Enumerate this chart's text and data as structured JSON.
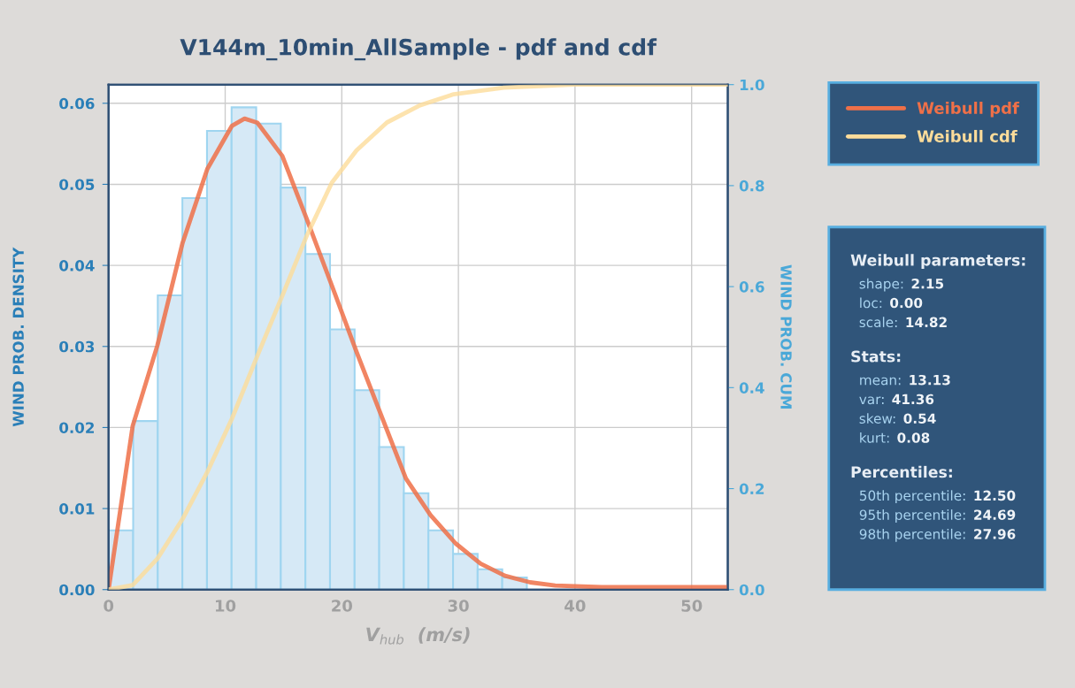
{
  "chart_data": {
    "type": "histogram",
    "title": "V144m_10min_AllSample - pdf and cdf",
    "xlabel": "V$_{hub}$  (m/s)",
    "ylabel": "WIND PROB. DENSITY",
    "y2label": "WIND PROB. CUM",
    "bins": [
      0,
      2.11,
      4.22,
      6.33,
      8.44,
      10.55,
      12.66,
      14.77,
      16.88,
      18.99,
      21.1,
      23.21,
      25.32,
      27.43,
      29.54,
      31.65,
      33.76,
      35.87,
      37.98,
      40.09,
      42.2
    ],
    "values": [
      0.0073,
      0.0208,
      0.0363,
      0.0483,
      0.0566,
      0.0595,
      0.0575,
      0.0496,
      0.0414,
      0.0321,
      0.0246,
      0.0176,
      0.0119,
      0.0073,
      0.0044,
      0.0025,
      0.0015,
      null,
      null,
      null
    ],
    "color": "#d6e9f6",
    "series": [
      {
        "name": "Weibull pdf",
        "type": "line",
        "color": "#ef7048",
        "x": [
          0,
          2.07,
          4.18,
          6.35,
          8.47,
          10.57,
          11.66,
          12.76,
          14.9,
          17.0,
          19.15,
          21.27,
          23.38,
          25.5,
          27.6,
          29.76,
          31.9,
          34.0,
          36.15,
          38.3,
          42.3,
          53.1
        ],
        "values": [
          0,
          0.0202,
          0.0301,
          0.0428,
          0.0519,
          0.0572,
          0.0581,
          0.0576,
          0.0535,
          0.0457,
          0.0375,
          0.0293,
          0.0215,
          0.0137,
          0.0092,
          0.0057,
          0.0032,
          0.0017,
          0.0009,
          0.0005,
          0.0003,
          0.0003
        ]
      },
      {
        "name": "Weibull cdf",
        "type": "line",
        "axis": "y2",
        "color": "#fddc9a",
        "x": [
          0,
          2.07,
          4.18,
          6.35,
          8.47,
          10.57,
          12.76,
          14.9,
          17.0,
          19.15,
          21.27,
          23.87,
          26.7,
          29.6,
          33.9,
          40,
          53.1
        ],
        "values": [
          0,
          0.009,
          0.061,
          0.14,
          0.233,
          0.338,
          0.463,
          0.582,
          0.701,
          0.806,
          0.87,
          0.925,
          0.959,
          0.981,
          0.994,
          1.0,
          1.0
        ]
      }
    ],
    "xlim": [
      0,
      53.1
    ],
    "xticks": [
      0,
      10,
      20,
      30,
      40,
      50
    ],
    "ylim": [
      0,
      0.0623
    ],
    "yticks": [
      {
        "value": 0,
        "label": "0.00"
      },
      {
        "value": 0.01,
        "label": "0.01"
      },
      {
        "value": 0.02,
        "label": "0.02"
      },
      {
        "value": 0.03,
        "label": "0.03"
      },
      {
        "value": 0.04,
        "label": "0.04"
      },
      {
        "value": 0.05,
        "label": "0.05"
      },
      {
        "value": 0.06,
        "label": "0.06"
      }
    ],
    "y2lim": [
      0,
      1.0
    ],
    "y2ticks": [
      {
        "value": 0,
        "label": "0.0"
      },
      {
        "value": 0.2,
        "label": "0.2"
      },
      {
        "value": 0.4,
        "label": "0.4"
      },
      {
        "value": 0.6,
        "label": "0.6"
      },
      {
        "value": 0.8,
        "label": "0.8"
      },
      {
        "value": 1.0,
        "label": "1.0"
      }
    ],
    "grid": true,
    "legend": "top right",
    "annotations": [
      "Weibull parameters:",
      "shape:  2.15",
      "loc:  0.00",
      "scale:  14.82",
      "Stats:",
      "mean:  13.13",
      "var:  41.36",
      "skew:  0.54",
      "kurt:  0.08",
      "Percentiles:",
      "50th percentile:  12.50",
      "95th percentile:  24.69",
      "98th percentile:  27.96"
    ]
  }
}
